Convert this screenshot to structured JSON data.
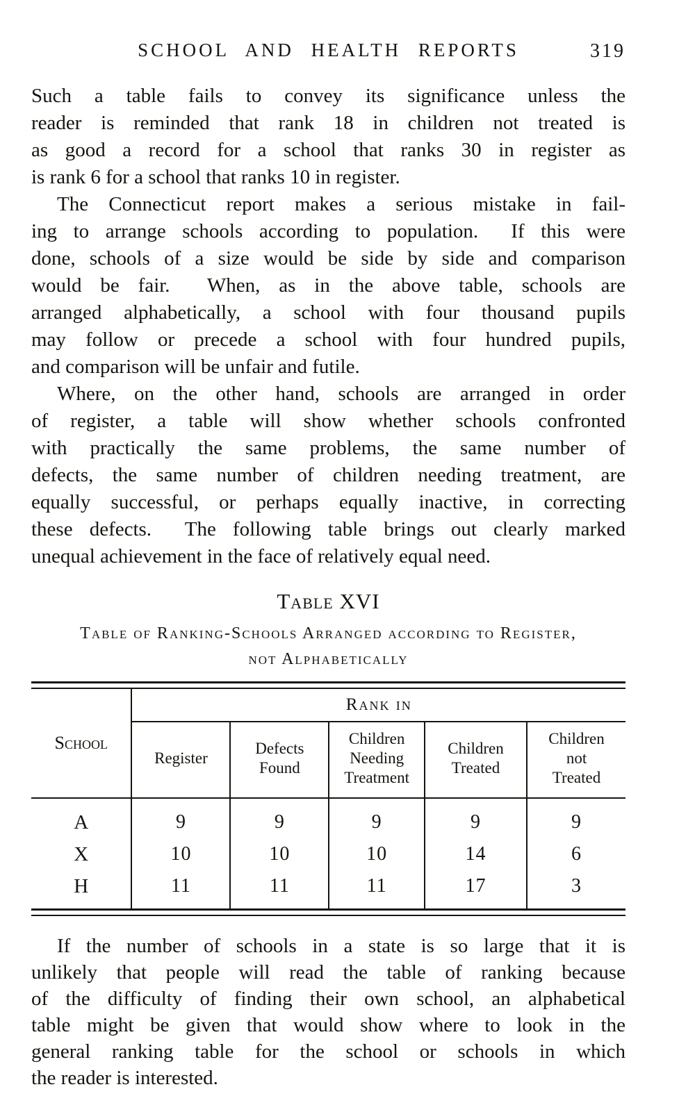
{
  "header": {
    "title": "SCHOOL AND HEALTH REPORTS",
    "page_number": "319"
  },
  "paragraphs": [
    {
      "lines": [
        "Such a table fails to convey its significance unless the",
        "reader is reminded that rank 18 in children not treated is",
        "as good a record for a school that ranks 30 in register as",
        "is rank 6 for a school that ranks 10 in register."
      ]
    },
    {
      "lines": [
        "The Connecticut report makes a serious mistake in fail-",
        "ing to arrange schools according to population.  If this were",
        "done, schools of a size would be side by side and comparison",
        "would be fair.  When, as in the above table, schools are",
        "arranged alphabetically, a school with four thousand pupils",
        "may follow or precede a school with four hundred pupils,",
        "and comparison will be unfair and futile."
      ]
    },
    {
      "lines": [
        "Where, on the other hand, schools are arranged in order",
        "of register, a table will show whether schools confronted",
        "with practically the same problems, the same number of",
        "defects, the same number of children needing treatment, are",
        "equally successful, or perhaps equally inactive, in correcting",
        "these defects.  The following table brings out clearly marked",
        "unequal achievement in the face of relatively equal need."
      ]
    }
  ],
  "table": {
    "caption": "Table XVI",
    "subtitle_line1": "Table of Ranking-Schools Arranged according to Register,",
    "subtitle_line2": "not Alphabetically",
    "school_header": "School",
    "span_header": "Rank in",
    "columns": [
      "Register",
      "Defects\nFound",
      "Children\nNeeding\nTreatment",
      "Children\nTreated",
      "Children\nnot\nTreated"
    ],
    "rows": [
      {
        "school": "A",
        "values": [
          "9",
          "9",
          "9",
          "9",
          "9"
        ]
      },
      {
        "school": "X",
        "values": [
          "10",
          "10",
          "10",
          "14",
          "6"
        ]
      },
      {
        "school": "H",
        "values": [
          "11",
          "11",
          "11",
          "17",
          "3"
        ]
      }
    ]
  },
  "closing_paragraph": {
    "lines": [
      "If the number of schools in a state is so large that it is",
      "unlikely that people will read the table of ranking because",
      "of the difficulty of finding their own school, an alphabetical",
      "table might be given that would show where to look in the",
      "general ranking table for the school or schools in which",
      "the reader is interested."
    ]
  },
  "colors": {
    "ink": "#17140f",
    "paper": "#ffffff"
  }
}
